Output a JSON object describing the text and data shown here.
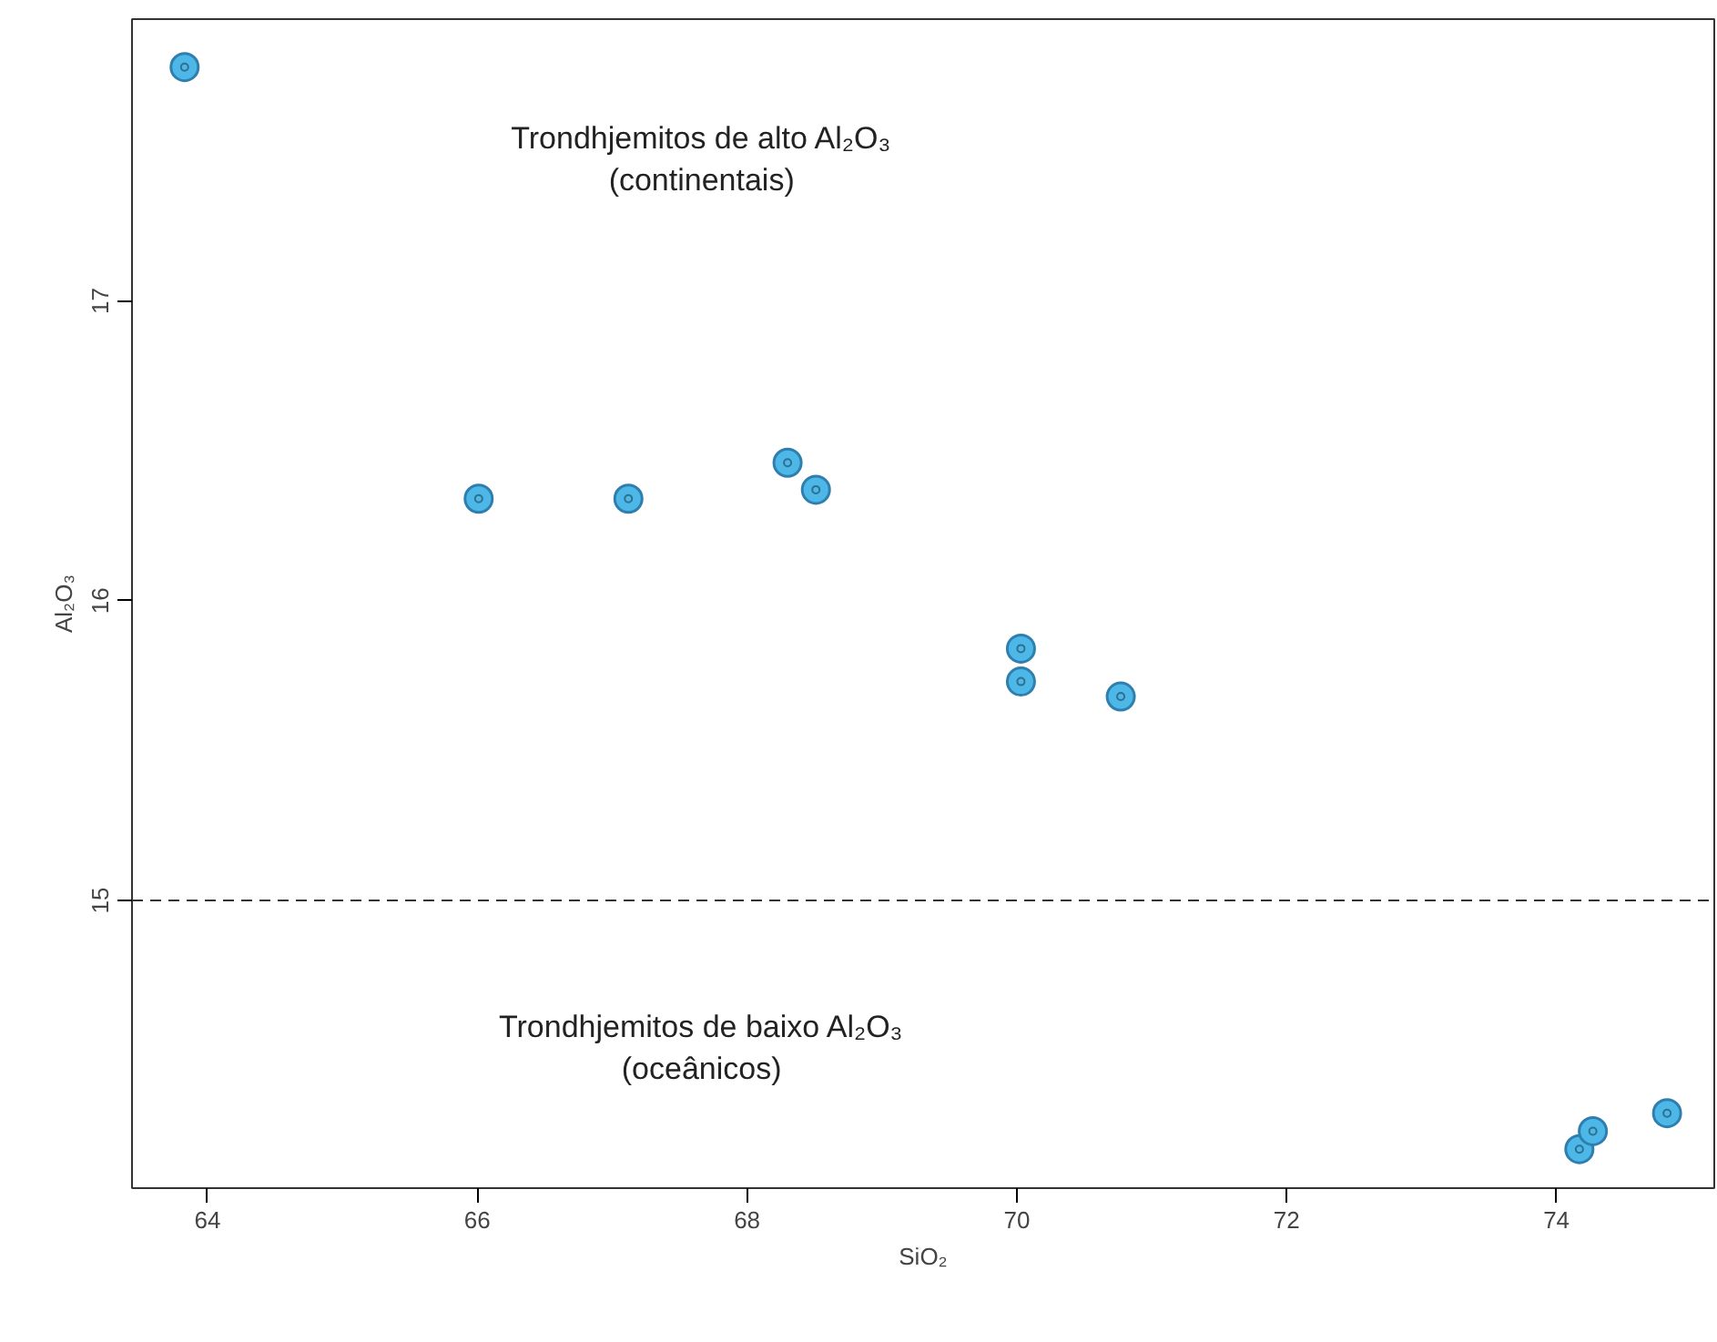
{
  "chart_data": {
    "type": "scatter",
    "xlabel": "SiO₂",
    "ylabel": "Al₂O₃",
    "x": [
      63.83,
      66.01,
      67.12,
      68.3,
      68.51,
      70.03,
      70.03,
      70.77,
      74.17,
      74.27,
      74.82
    ],
    "series": [
      {
        "color": "#4db8e8",
        "values": [
          17.78,
          16.34,
          16.34,
          16.46,
          16.37,
          15.84,
          15.73,
          15.68,
          14.17,
          14.23,
          14.29
        ]
      }
    ],
    "xlim": [
      63.44,
      75.17
    ],
    "ylim": [
      14.04,
      17.94
    ],
    "xticks": [
      64,
      66,
      68,
      70,
      72,
      74
    ],
    "yticks": [
      15,
      16,
      17
    ],
    "ref_lines": [
      {
        "axis": "y",
        "value": 15,
        "line_style": "dashed"
      }
    ],
    "annotations": [
      "Trondhjemitos de alto Al₂O₃\n(continentais)",
      "Trondhjemitos de baixo Al₂O₃\n(oceânicos)"
    ],
    "marker": "circle",
    "grid": false
  }
}
